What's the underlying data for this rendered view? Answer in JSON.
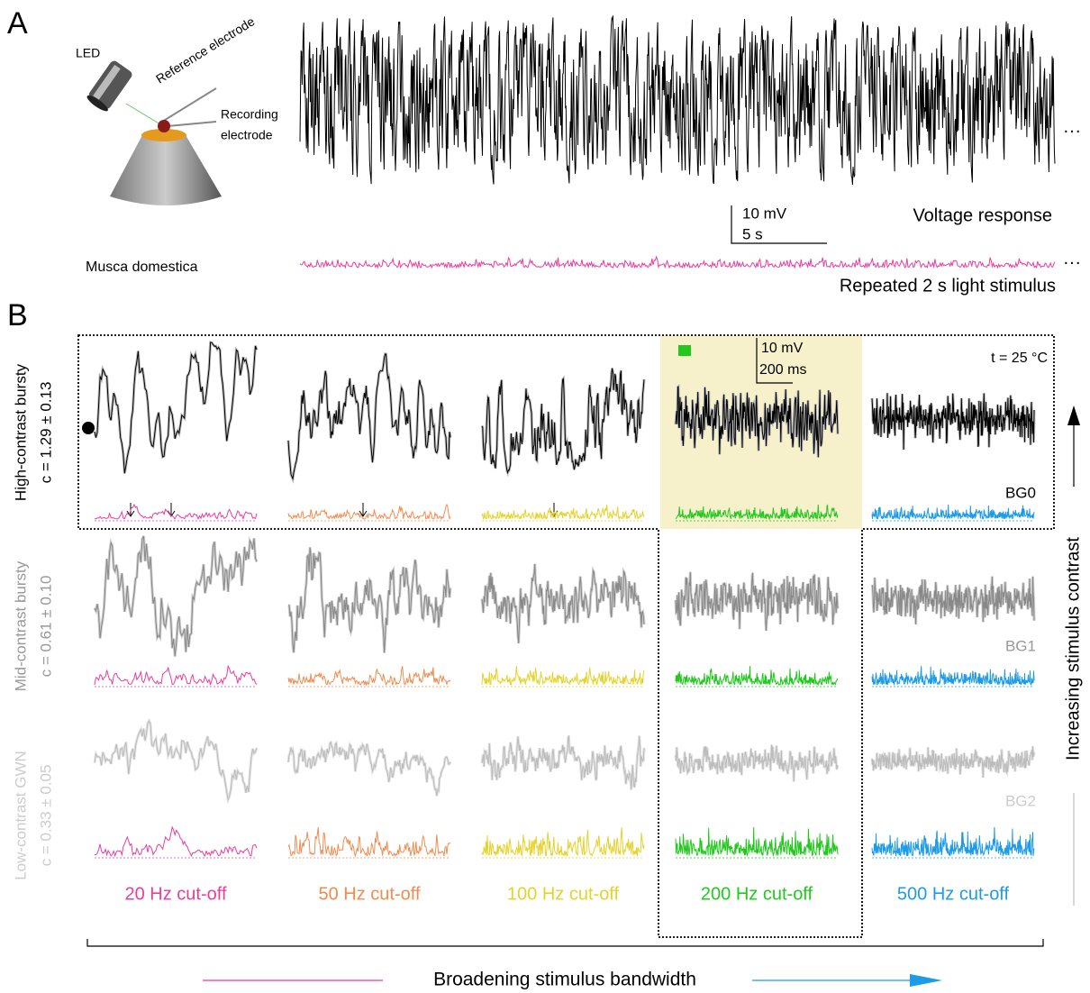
{
  "panel_a": {
    "label": "A",
    "led": "LED",
    "reference_electrode": "Reference electrode",
    "recording_electrode": [
      "Recording",
      "electrode"
    ],
    "species": "Musca domestica",
    "scale_voltage": "10 mV",
    "scale_time": "5 s",
    "response_label": "Voltage response",
    "stimulus_label": "Repeated 2 s light stimulus",
    "continuation": "···"
  },
  "panel_b": {
    "label": "B",
    "rows": [
      {
        "name": "High-contrast bursty",
        "contrast": "c = 1.29 ± 0.13",
        "background": "BG0"
      },
      {
        "name": "Mid-contrast bursty",
        "contrast": "c = 0.61 ± 0.10",
        "background": "BG1"
      },
      {
        "name": "Low-contrast GWN",
        "contrast": "c = 0.33 ± 0.05",
        "background": "BG2"
      }
    ],
    "columns": [
      "20 Hz cut-off",
      "50 Hz cut-off",
      "100 Hz cut-off",
      "200 Hz cut-off",
      "500 Hz cut-off"
    ],
    "scale_voltage": "10 mV",
    "scale_time": "200 ms",
    "temperature": "t = 25 °C",
    "contrast_axis": "Increasing stimulus contrast",
    "bandwidth_axis": "Broadening stimulus bandwidth"
  }
}
